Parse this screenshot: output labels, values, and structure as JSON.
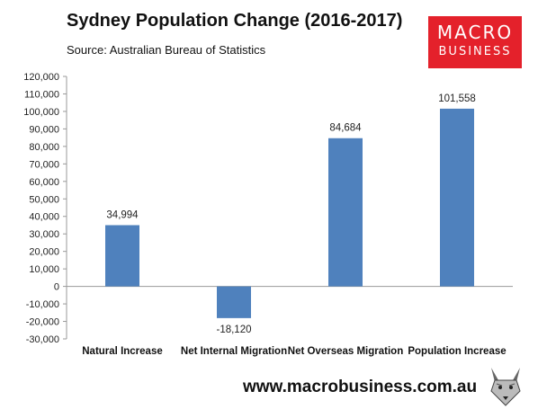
{
  "header": {
    "title": "Sydney Population Change (2016-2017)",
    "subtitle": "Source: Australian Bureau of Statistics"
  },
  "logo": {
    "line1": "MACRO",
    "line2": "BUSINESS",
    "color": "#e4212b"
  },
  "footer": {
    "url": "www.macrobusiness.com.au",
    "mascot_icon": "wolf-icon"
  },
  "chart_data": {
    "type": "bar",
    "title": "Sydney Population Change (2016-2017)",
    "categories": [
      "Natural Increase",
      "Net Internal Migration",
      "Net Overseas Migration",
      "Population Increase"
    ],
    "values": [
      34994,
      -18120,
      84684,
      101558
    ],
    "value_labels": [
      "34,994",
      "-18,120",
      "84,684",
      "101,558"
    ],
    "ylim": [
      -30000,
      120000
    ],
    "yticks": [
      -30000,
      -20000,
      -10000,
      0,
      10000,
      20000,
      30000,
      40000,
      50000,
      60000,
      70000,
      80000,
      90000,
      100000,
      110000,
      120000
    ],
    "ytick_labels": [
      "-30,000",
      "-20,000",
      "-10,000",
      "0",
      "10,000",
      "20,000",
      "30,000",
      "40,000",
      "50,000",
      "60,000",
      "70,000",
      "80,000",
      "90,000",
      "100,000",
      "110,000",
      "120,000"
    ],
    "bar_color": "#4f81bd",
    "grid": false,
    "legend": "none"
  }
}
